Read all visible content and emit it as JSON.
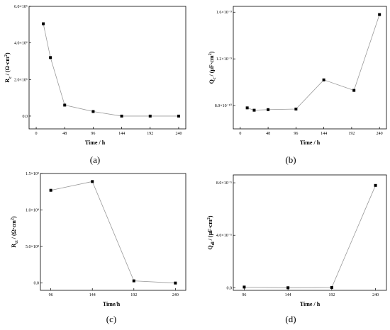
{
  "chart_data": [
    {
      "id": "a",
      "type": "scatter",
      "panel_label": "(a)",
      "xlabel": "Time / h",
      "ylabel_main": "R",
      "ylabel_sub": "c",
      "ylabel_unit": " / (Ω·cm",
      "ylabel_sup": "2",
      "ylabel_tail": ")",
      "xlim": [
        -12,
        252
      ],
      "ylim": [
        -0.7,
        6.0
      ],
      "xticks": [
        0,
        48,
        96,
        144,
        192,
        240
      ],
      "xtick_labels": [
        "0",
        "48",
        "96",
        "144",
        "192",
        "240"
      ],
      "yticks": [
        0,
        2,
        4,
        6
      ],
      "ytick_labels": [
        "0.0",
        "2.0×10⁶",
        "4.0×10⁶",
        "6.0×10⁶"
      ],
      "x": [
        12,
        24,
        48,
        96,
        144,
        192,
        240
      ],
      "y": [
        5.05,
        3.2,
        0.6,
        0.25,
        0.0,
        0.0,
        0.0
      ]
    },
    {
      "id": "b",
      "type": "scatter",
      "panel_label": "(b)",
      "xlabel": "Time / h",
      "ylabel_main": "Q",
      "ylabel_sub": "c",
      "ylabel_unit": " / (μF·cm",
      "ylabel_sup": "2",
      "ylabel_tail": ")",
      "xlim": [
        -12,
        252
      ],
      "ylim": [
        0.6,
        1.65
      ],
      "xticks": [
        0,
        48,
        96,
        144,
        192,
        240
      ],
      "xtick_labels": [
        "0",
        "48",
        "96",
        "144",
        "192",
        "240"
      ],
      "yticks": [
        0.8,
        1.2,
        1.6
      ],
      "ytick_labels": [
        "8.0×10⁻¹⁰",
        "1.2×10⁻⁹",
        "1.6×10⁻⁹"
      ],
      "x": [
        12,
        24,
        48,
        96,
        144,
        196,
        240
      ],
      "y": [
        0.78,
        0.76,
        0.765,
        0.77,
        1.02,
        0.93,
        1.58
      ]
    },
    {
      "id": "c",
      "type": "scatter",
      "panel_label": "(c)",
      "xlabel": "Time/h",
      "ylabel_main": "R",
      "ylabel_sub": "ct",
      "ylabel_unit": " / (Ω·cm",
      "ylabel_sup": "2",
      "ylabel_tail": ")",
      "xlim": [
        84,
        252
      ],
      "ylim": [
        -0.1,
        1.5
      ],
      "xticks": [
        96,
        144,
        192,
        240
      ],
      "xtick_labels": [
        "96",
        "144",
        "192",
        "240"
      ],
      "yticks": [
        0,
        0.5,
        1.0,
        1.5
      ],
      "ytick_labels": [
        "0.0",
        "5.0×10⁸",
        "1.0×10⁹",
        "1.5×10⁹"
      ],
      "x": [
        96,
        144,
        192,
        240
      ],
      "y": [
        1.27,
        1.39,
        0.03,
        0.0
      ]
    },
    {
      "id": "d",
      "type": "scatter",
      "panel_label": "(d)",
      "xlabel": "Time / h",
      "ylabel_main": "Q",
      "ylabel_sub": "dl",
      "ylabel_unit": " / (μF·cm",
      "ylabel_sup": "2",
      "ylabel_tail": ")",
      "xlim": [
        84,
        252
      ],
      "ylim": [
        -0.2,
        8.6
      ],
      "xticks": [
        96,
        144,
        192,
        240
      ],
      "xtick_labels": [
        "96",
        "144",
        "192",
        "240"
      ],
      "yticks": [
        0,
        4,
        8
      ],
      "ytick_labels": [
        "0.0",
        "4.0×10⁻⁵",
        "8.0×10⁻⁵"
      ],
      "x": [
        96,
        144,
        192,
        240
      ],
      "y": [
        0.05,
        0.0,
        0.02,
        7.8
      ]
    }
  ]
}
